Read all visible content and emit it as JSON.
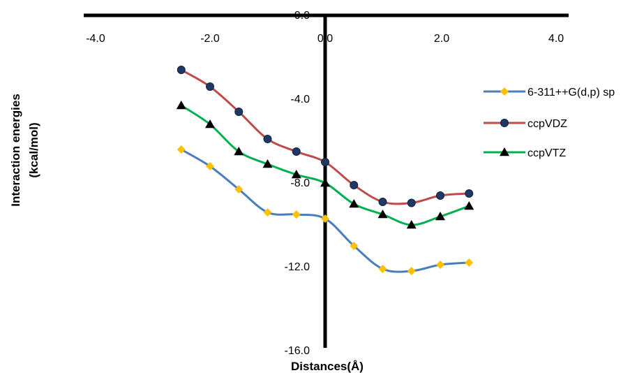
{
  "chart_data": {
    "type": "line",
    "xlabel": "Distances(Å)",
    "ylabel_lines": [
      "Interaction energies",
      "(kcal/mol)"
    ],
    "xlim": [
      -4,
      4
    ],
    "ylim": [
      -16,
      0
    ],
    "x_ticks": [
      {
        "value": -4,
        "label": "-4.0"
      },
      {
        "value": -2,
        "label": "-2.0"
      },
      {
        "value": 0,
        "label": "0.0"
      },
      {
        "value": 2,
        "label": "2.0"
      },
      {
        "value": 4,
        "label": "4.0"
      }
    ],
    "y_ticks": [
      {
        "value": 0,
        "label": "0.0"
      },
      {
        "value": -4,
        "label": "-4.0"
      },
      {
        "value": -8,
        "label": "-8.0"
      },
      {
        "value": -12,
        "label": "-12.0"
      },
      {
        "value": -16,
        "label": "-16.0"
      }
    ],
    "grid": false,
    "smooth": true,
    "legend_position": "right",
    "x": [
      -2.5,
      -2.0,
      -1.5,
      -1.0,
      -0.5,
      0.0,
      0.5,
      1.0,
      1.5,
      2.0,
      2.5
    ],
    "series": [
      {
        "name": "6-311++G(d,p) sp",
        "color": "#4a7ebb",
        "marker": "diamond",
        "marker_color": "#ffc000",
        "values": [
          -6.4,
          -7.2,
          -8.3,
          -9.4,
          -9.5,
          -9.7,
          -11.0,
          -12.1,
          -12.2,
          -11.9,
          -11.8
        ]
      },
      {
        "name": "ccpVDZ",
        "color": "#be4b48",
        "marker": "circle",
        "marker_color": "#1f3864",
        "values": [
          -2.6,
          -3.4,
          -4.6,
          -5.9,
          -6.5,
          -7.0,
          -8.1,
          -8.9,
          -8.95,
          -8.6,
          -8.5
        ]
      },
      {
        "name": "ccpVTZ",
        "color": "#00b050",
        "marker": "triangle",
        "marker_color": "#000000",
        "values": [
          -4.3,
          -5.2,
          -6.5,
          -7.1,
          -7.6,
          -8.0,
          -9.0,
          -9.5,
          -10.0,
          -9.6,
          -9.1
        ]
      }
    ]
  }
}
